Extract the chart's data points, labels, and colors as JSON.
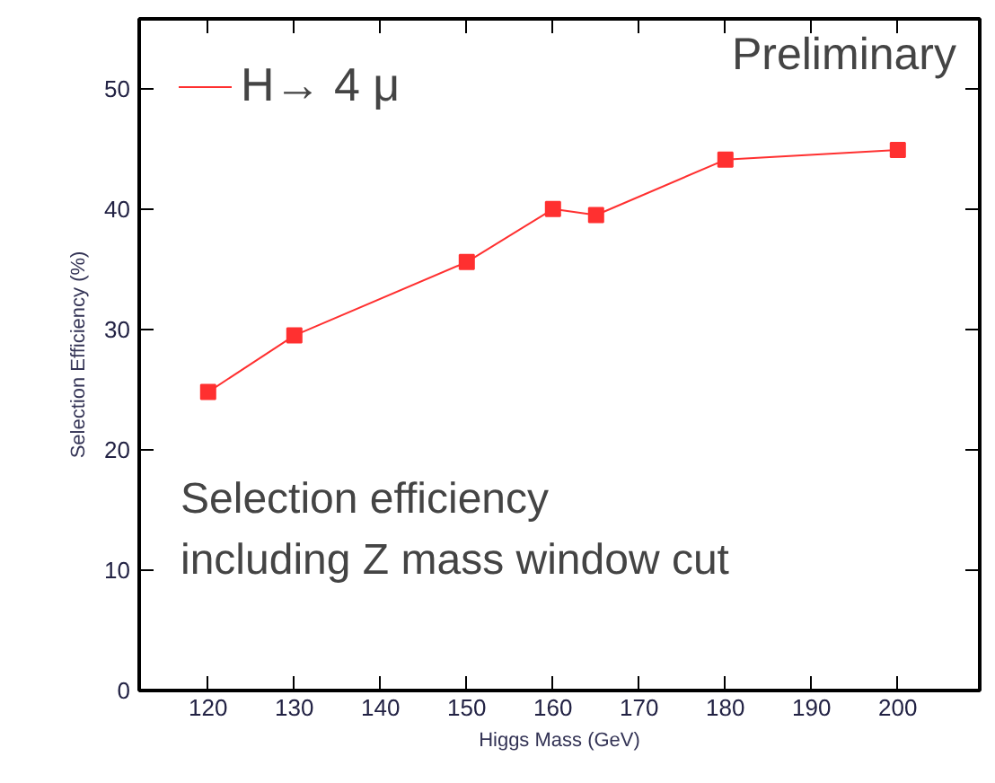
{
  "chart_data": {
    "type": "line",
    "xlabel": "Higgs Mass (GeV)",
    "ylabel": "Selection Efficiency (%)",
    "x": [
      120,
      130,
      150,
      160,
      165,
      180,
      200
    ],
    "series": [
      {
        "name": "H→ 4 μ",
        "color": "#ff3030",
        "values": [
          24.8,
          29.5,
          35.6,
          40.0,
          39.5,
          44.1,
          44.9
        ]
      }
    ],
    "xlim": [
      112,
      209.5
    ],
    "ylim": [
      0,
      55.8
    ],
    "xticks": [
      120,
      130,
      140,
      150,
      160,
      170,
      180,
      190,
      200
    ],
    "yticks": [
      0,
      10,
      20,
      30,
      40,
      50
    ],
    "marker": "square",
    "line_style": "solid",
    "grid": false,
    "legend": "top left",
    "annotations": [
      "Preliminary",
      "Selection efficiency\nincluding Z mass window cut"
    ]
  }
}
